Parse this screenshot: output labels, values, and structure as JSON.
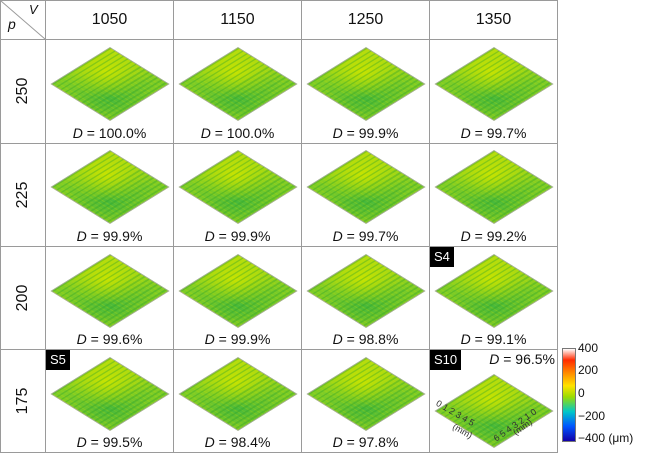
{
  "header": {
    "p_label": "p",
    "v_label": "V"
  },
  "columns": [
    "1050",
    "1150",
    "1250",
    "1350"
  ],
  "rows": [
    {
      "label": "250",
      "cells": [
        {
          "d_label": "D",
          "d_value": "= 100.0%",
          "tag": ""
        },
        {
          "d_label": "D",
          "d_value": "= 100.0%",
          "tag": ""
        },
        {
          "d_label": "D",
          "d_value": "= 99.9%",
          "tag": ""
        },
        {
          "d_label": "D",
          "d_value": "= 99.7%",
          "tag": ""
        }
      ]
    },
    {
      "label": "225",
      "cells": [
        {
          "d_label": "D",
          "d_value": "= 99.9%",
          "tag": ""
        },
        {
          "d_label": "D",
          "d_value": "= 99.9%",
          "tag": ""
        },
        {
          "d_label": "D",
          "d_value": "= 99.7%",
          "tag": ""
        },
        {
          "d_label": "D",
          "d_value": "= 99.2%",
          "tag": ""
        }
      ]
    },
    {
      "label": "200",
      "cells": [
        {
          "d_label": "D",
          "d_value": "= 99.6%",
          "tag": ""
        },
        {
          "d_label": "D",
          "d_value": "= 99.9%",
          "tag": ""
        },
        {
          "d_label": "D",
          "d_value": "= 98.8%",
          "tag": ""
        },
        {
          "d_label": "D",
          "d_value": "= 99.1%",
          "tag": "S4"
        }
      ]
    },
    {
      "label": "175",
      "cells": [
        {
          "d_label": "D",
          "d_value": "= 99.5%",
          "tag": "S5"
        },
        {
          "d_label": "D",
          "d_value": "= 98.4%",
          "tag": ""
        },
        {
          "d_label": "D",
          "d_value": "= 97.8%",
          "tag": ""
        },
        {
          "d_label": "D",
          "d_value": "= 96.5%",
          "tag": "S10"
        }
      ]
    }
  ],
  "axes": {
    "x_ticks": "0 1 2 3 4 5",
    "x_unit": "(mm)",
    "y_ticks": "6 5 4 3 2 1 0",
    "y_unit": "(mm)"
  },
  "colorbar": {
    "ticks": [
      "400",
      "200",
      "0",
      "−200",
      "−400"
    ],
    "unit": "(μm)"
  }
}
